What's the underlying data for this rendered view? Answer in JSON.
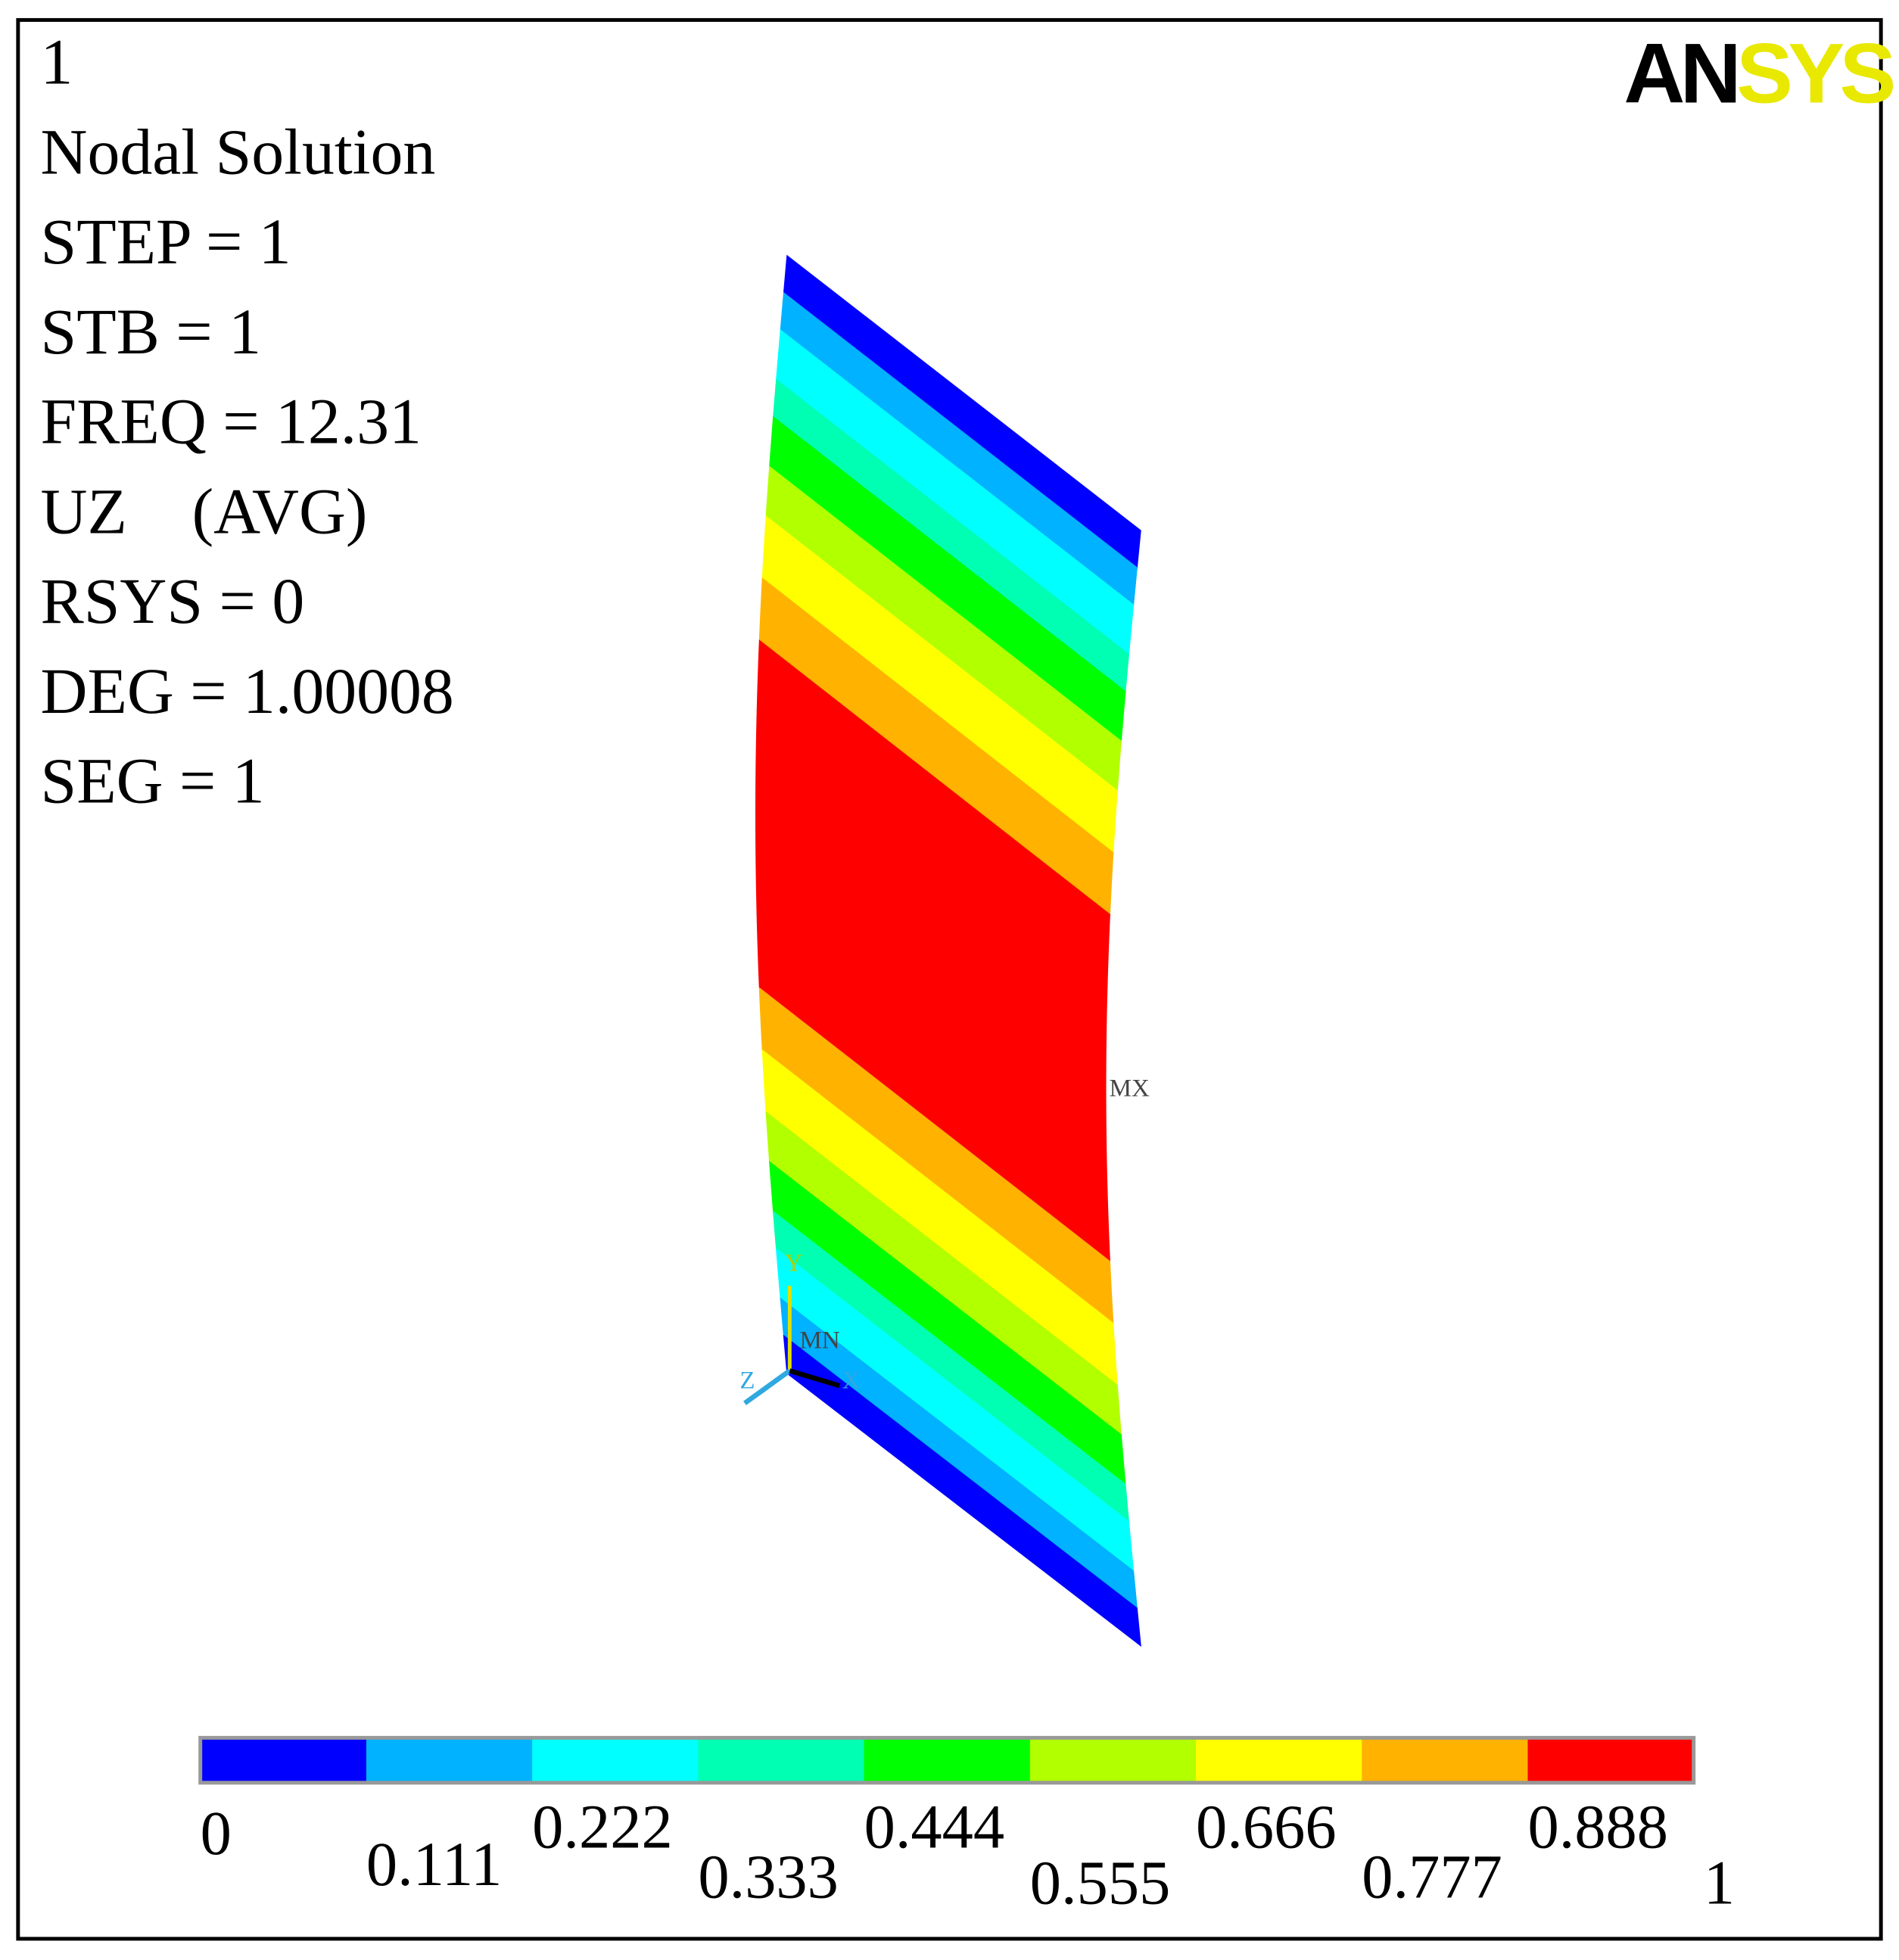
{
  "header": {
    "lines": [
      "1",
      "Nodal Solution",
      "STEP = 1",
      "STB = 1",
      "FREQ = 12.31",
      "UZ    (AVG)",
      "RSYS = 0",
      "DEG = 1.00008",
      "SEG = 1"
    ]
  },
  "logo": {
    "left": "AN",
    "right": "SYS"
  },
  "triad": {
    "x": "X",
    "y": "Y",
    "z": "Z"
  },
  "markers": {
    "min": "MN",
    "max": "MX"
  },
  "colorbar": {
    "colors": [
      "#0000ff",
      "#00b2ff",
      "#00ffff",
      "#00ffb2",
      "#00ff00",
      "#b2ff00",
      "#ffff00",
      "#ffb200",
      "#ff0000"
    ],
    "labels": [
      "0",
      "0.111",
      "0.222",
      "0.333",
      "0.444",
      "0.555",
      "0.666",
      "0.777",
      "0.888",
      "1"
    ]
  }
}
